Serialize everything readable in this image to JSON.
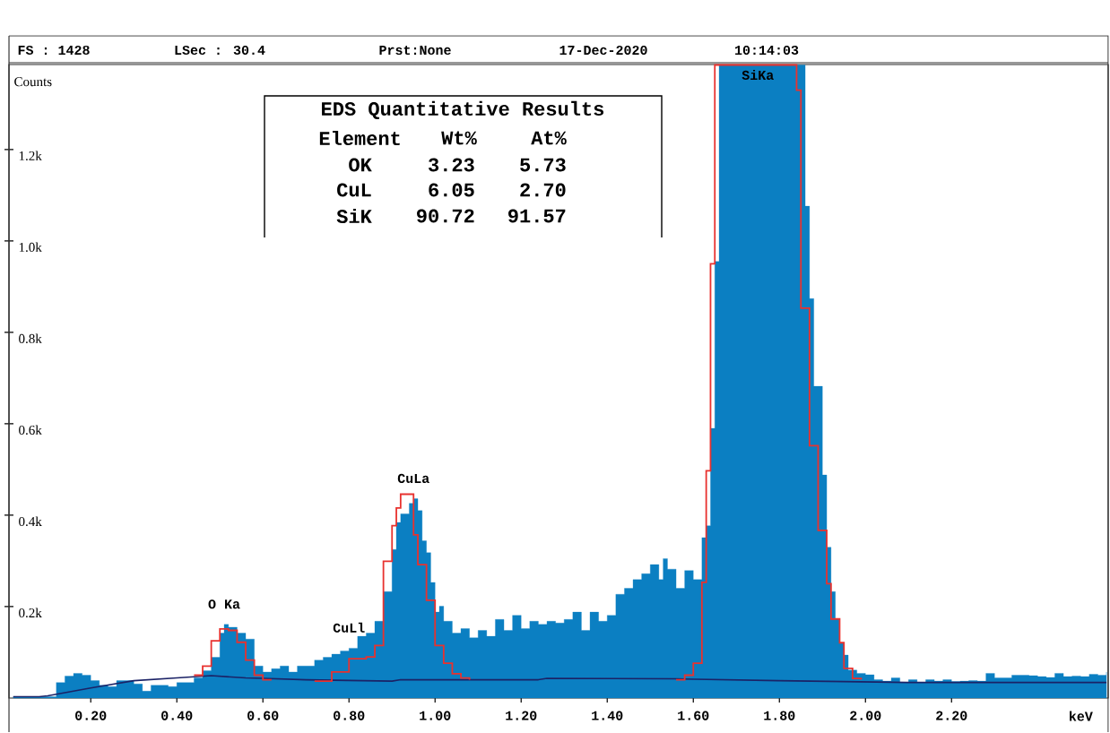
{
  "chart_data": {
    "type": "step",
    "xlabel": "keV",
    "ylabel": "Counts",
    "marker": "none",
    "xlim": [
      0.01,
      2.564
    ],
    "ylim": [
      0,
      1386
    ],
    "xticks": [
      {
        "value": 0.2,
        "label": "0.20"
      },
      {
        "value": 0.4,
        "label": "0.40"
      },
      {
        "value": 0.6,
        "label": "0.60"
      },
      {
        "value": 0.8,
        "label": "0.80"
      },
      {
        "value": 1.0,
        "label": "1.00"
      },
      {
        "value": 1.2,
        "label": "1.20"
      },
      {
        "value": 1.4,
        "label": "1.40"
      },
      {
        "value": 1.6,
        "label": "1.60"
      },
      {
        "value": 1.8,
        "label": "1.80"
      },
      {
        "value": 2.0,
        "label": "2.00"
      },
      {
        "value": 2.2,
        "label": "2.20"
      }
    ],
    "yticks": [
      {
        "value": 200,
        "label": "0.2k"
      },
      {
        "value": 400,
        "label": "0.4k"
      },
      {
        "value": 600,
        "label": "0.6k"
      },
      {
        "value": 800,
        "label": "0.8k"
      },
      {
        "value": 1000,
        "label": "1.0k"
      },
      {
        "value": 1200,
        "label": "1.2k"
      }
    ],
    "series": [
      {
        "type": "area",
        "color": "#0b7fc2",
        "x": [
          0.02,
          0.04,
          0.06,
          0.08,
          0.1,
          0.12,
          0.14,
          0.16,
          0.18,
          0.2,
          0.22,
          0.24,
          0.26,
          0.28,
          0.3,
          0.32,
          0.34,
          0.36,
          0.38,
          0.4,
          0.42,
          0.44,
          0.46,
          0.48,
          0.5,
          0.51,
          0.52,
          0.54,
          0.56,
          0.58,
          0.6,
          0.62,
          0.64,
          0.66,
          0.68,
          0.7,
          0.72,
          0.74,
          0.76,
          0.78,
          0.8,
          0.82,
          0.84,
          0.86,
          0.88,
          0.9,
          0.91,
          0.92,
          0.94,
          0.95,
          0.96,
          0.97,
          0.98,
          0.99,
          1.0,
          1.01,
          1.02,
          1.04,
          1.06,
          1.08,
          1.1,
          1.12,
          1.14,
          1.16,
          1.18,
          1.2,
          1.22,
          1.24,
          1.26,
          1.28,
          1.3,
          1.32,
          1.34,
          1.36,
          1.38,
          1.4,
          1.42,
          1.44,
          1.46,
          1.48,
          1.5,
          1.52,
          1.53,
          1.54,
          1.56,
          1.58,
          1.6,
          1.62,
          1.63,
          1.64,
          1.65,
          1.66,
          1.75,
          1.85,
          1.86,
          1.87,
          1.88,
          1.9,
          1.91,
          1.92,
          1.93,
          1.94,
          1.95,
          1.96,
          1.98,
          2.0,
          2.02,
          2.04,
          2.06,
          2.08,
          2.1,
          2.12,
          2.14,
          2.16,
          2.18,
          2.2,
          2.22,
          2.24,
          2.26,
          2.28,
          2.3,
          2.32,
          2.34,
          2.36,
          2.38,
          2.4,
          2.42,
          2.44,
          2.46,
          2.48,
          2.5,
          2.52,
          2.54,
          2.56
        ],
        "values": [
          3,
          3,
          3,
          3,
          3,
          34,
          48,
          54,
          50,
          38,
          28,
          25,
          38,
          38,
          31,
          15,
          28,
          28,
          25,
          34,
          34,
          44,
          60,
          89,
          142,
          161,
          155,
          142,
          129,
          70,
          57,
          64,
          70,
          57,
          70,
          70,
          83,
          89,
          96,
          103,
          109,
          135,
          142,
          168,
          233,
          325,
          384,
          403,
          426,
          436,
          410,
          344,
          318,
          253,
          188,
          201,
          168,
          142,
          152,
          132,
          148,
          135,
          172,
          148,
          181,
          152,
          168,
          161,
          168,
          164,
          172,
          188,
          148,
          188,
          168,
          181,
          227,
          240,
          259,
          272,
          292,
          259,
          305,
          282,
          240,
          279,
          259,
          351,
          377,
          590,
          955,
          1385,
          1385,
          1385,
          1076,
          874,
          682,
          488,
          330,
          233,
          173,
          121,
          94,
          61,
          54,
          51,
          40,
          37,
          44,
          34,
          40,
          34,
          40,
          37,
          40,
          36,
          37,
          38,
          37,
          54,
          44,
          44,
          50,
          50,
          49,
          47,
          45,
          54,
          47,
          48,
          47,
          52,
          50,
          57
        ]
      },
      {
        "type": "line",
        "color": "#1b2266",
        "x": [
          0.02,
          0.08,
          0.1,
          0.2,
          0.3,
          0.4,
          0.48,
          0.56,
          0.6,
          0.7,
          0.9,
          0.92,
          1.24,
          1.26,
          1.56,
          1.8,
          2.1,
          2.56
        ],
        "values": [
          3,
          3,
          5,
          22,
          38,
          44,
          49,
          44,
          43,
          40,
          37,
          40,
          40,
          43,
          42,
          38,
          34,
          34
        ]
      },
      {
        "color": "#e8322f",
        "x": [
          0.44,
          0.46,
          0.48,
          0.5,
          0.52,
          0.54,
          0.56,
          0.58,
          0.6,
          0.62,
          0.64,
          0.72,
          0.76,
          0.8,
          0.84,
          0.86,
          0.88,
          0.9,
          0.91,
          0.92,
          0.94,
          0.95,
          0.96,
          0.98,
          1.0,
          1.02,
          1.04,
          1.06,
          1.08,
          1.1,
          1.56,
          1.58,
          1.6,
          1.62,
          1.63,
          1.64,
          1.65,
          1.84,
          1.85,
          1.87,
          1.89,
          1.91,
          1.92,
          1.94,
          1.95,
          1.97,
          1.99
        ],
        "values": [
          50,
          70,
          125,
          151,
          148,
          122,
          83,
          50,
          40,
          40,
          null,
          37,
          57,
          86,
          90,
          115,
          299,
          377,
          416,
          446,
          446,
          357,
          292,
          214,
          115,
          76,
          53,
          44,
          40,
          null,
          40,
          50,
          76,
          253,
          497,
          950,
          1385,
          1330,
          853,
          552,
          367,
          250,
          173,
          121,
          65,
          43,
          40
        ]
      }
    ],
    "annotations": [
      "FS : 1428",
      "LSec : 30.4",
      "Prst:None",
      "17-Dec-2020",
      "10:14:03",
      "EDS Quantitative Results",
      "Element",
      "Wt%",
      "At%",
      "OK",
      "3.23",
      "5.73",
      "CuL",
      "6.05",
      "2.70",
      "SiK",
      "90.72",
      "91.57",
      {
        "text": "O Ka",
        "x": 0.51,
        "y": 161
      },
      {
        "text": "CuLl",
        "x": 0.8,
        "y": 109
      },
      {
        "text": "CuLa",
        "x": 0.95,
        "y": 436
      },
      {
        "text": "SiKa",
        "x": 1.75,
        "y": 1385
      }
    ]
  }
}
